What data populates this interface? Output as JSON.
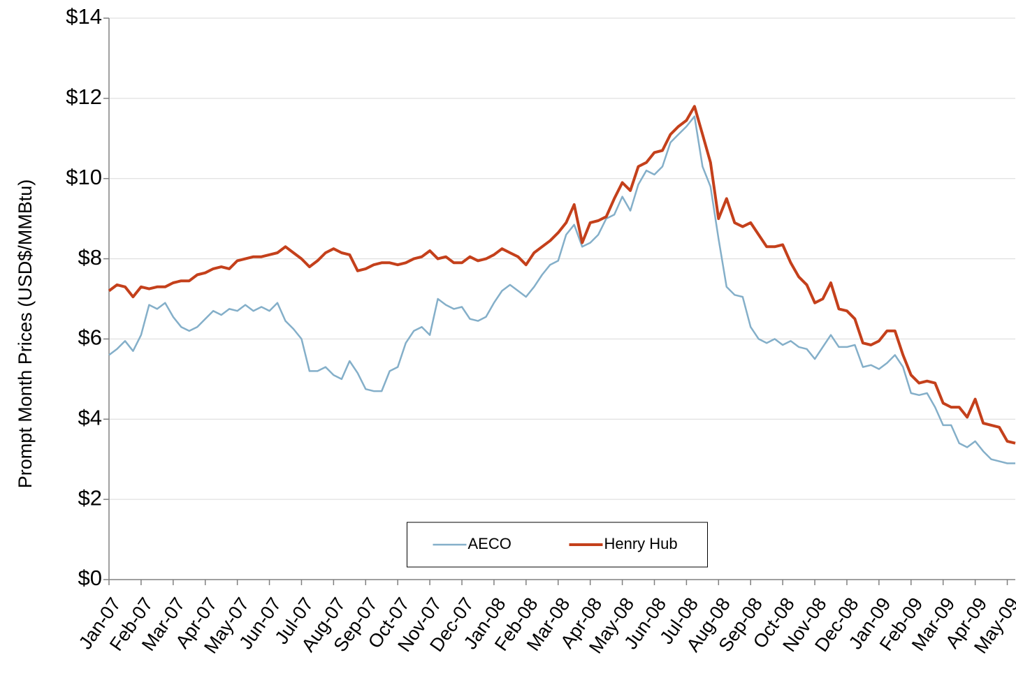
{
  "chart_data": {
    "type": "line",
    "y_label": "Prompt Month Prices (USD$/MMBtu)",
    "categories": [
      "Jan-07",
      null,
      null,
      null,
      "Feb-07",
      null,
      null,
      null,
      "Mar-07",
      null,
      null,
      null,
      "Apr-07",
      null,
      null,
      null,
      "May-07",
      null,
      null,
      null,
      "Jun-07",
      null,
      null,
      null,
      "Jul-07",
      null,
      null,
      null,
      "Aug-07",
      null,
      null,
      null,
      "Sep-07",
      null,
      null,
      null,
      "Oct-07",
      null,
      null,
      null,
      "Nov-07",
      null,
      null,
      null,
      "Dec-07",
      null,
      null,
      null,
      "Jan-08",
      null,
      null,
      null,
      "Feb-08",
      null,
      null,
      null,
      "Mar-08",
      null,
      null,
      null,
      "Apr-08",
      null,
      null,
      null,
      "May-08",
      null,
      null,
      null,
      "Jun-08",
      null,
      null,
      null,
      "Jul-08",
      null,
      null,
      null,
      "Aug-08",
      null,
      null,
      null,
      "Sep-08",
      null,
      null,
      null,
      "Oct-08",
      null,
      null,
      null,
      "Nov-08",
      null,
      null,
      null,
      "Dec-08",
      null,
      null,
      null,
      "Jan-09",
      null,
      null,
      null,
      "Feb-09",
      null,
      null,
      null,
      "Mar-09",
      null,
      null,
      null,
      "Apr-09",
      null,
      null,
      null,
      "May-09",
      null
    ],
    "series": [
      {
        "name": "AECO",
        "color": "#84afc9",
        "width": 2.5,
        "values": [
          5.6,
          5.75,
          5.95,
          5.7,
          6.1,
          6.85,
          6.75,
          6.9,
          6.55,
          6.3,
          6.2,
          6.3,
          6.5,
          6.7,
          6.6,
          6.75,
          6.7,
          6.85,
          6.7,
          6.8,
          6.7,
          6.9,
          6.45,
          6.25,
          6.0,
          5.2,
          5.2,
          5.3,
          5.1,
          5.0,
          5.45,
          5.15,
          4.75,
          4.7,
          4.7,
          5.2,
          5.3,
          5.9,
          6.2,
          6.3,
          6.1,
          7.0,
          6.85,
          6.75,
          6.8,
          6.5,
          6.45,
          6.55,
          6.9,
          7.2,
          7.35,
          7.2,
          7.05,
          7.3,
          7.6,
          7.85,
          7.95,
          8.6,
          8.85,
          8.3,
          8.4,
          8.6,
          9.0,
          9.1,
          9.55,
          9.2,
          9.85,
          10.2,
          10.1,
          10.3,
          10.9,
          11.1,
          11.3,
          11.55,
          10.3,
          9.8,
          8.5,
          7.3,
          7.1,
          7.05,
          6.3,
          6.0,
          5.9,
          6.0,
          5.85,
          5.95,
          5.8,
          5.75,
          5.5,
          5.8,
          6.1,
          5.8,
          5.8,
          5.85,
          5.3,
          5.35,
          5.25,
          5.4,
          5.6,
          5.3,
          4.65,
          4.6,
          4.65,
          4.3,
          3.85,
          3.85,
          3.4,
          3.3,
          3.45,
          3.2,
          3.0,
          2.95,
          2.9,
          2.9
        ]
      },
      {
        "name": "Henry Hub",
        "color": "#c4401b",
        "width": 4,
        "values": [
          7.2,
          7.35,
          7.3,
          7.05,
          7.3,
          7.25,
          7.3,
          7.3,
          7.4,
          7.45,
          7.45,
          7.6,
          7.65,
          7.75,
          7.8,
          7.75,
          7.95,
          8.0,
          8.05,
          8.05,
          8.1,
          8.15,
          8.3,
          8.15,
          8.0,
          7.8,
          7.95,
          8.15,
          8.25,
          8.15,
          8.1,
          7.7,
          7.75,
          7.85,
          7.9,
          7.9,
          7.85,
          7.9,
          8.0,
          8.05,
          8.2,
          8.0,
          8.05,
          7.9,
          7.9,
          8.05,
          7.95,
          8.0,
          8.1,
          8.25,
          8.15,
          8.05,
          7.85,
          8.15,
          8.3,
          8.45,
          8.65,
          8.9,
          9.35,
          8.4,
          8.9,
          8.95,
          9.05,
          9.5,
          9.9,
          9.7,
          10.3,
          10.4,
          10.65,
          10.7,
          11.1,
          11.3,
          11.45,
          11.8,
          11.1,
          10.4,
          9.0,
          9.5,
          8.9,
          8.8,
          8.9,
          8.6,
          8.3,
          8.3,
          8.35,
          7.9,
          7.55,
          7.35,
          6.9,
          7.0,
          7.4,
          6.75,
          6.7,
          6.5,
          5.9,
          5.85,
          5.95,
          6.2,
          6.2,
          5.6,
          5.1,
          4.9,
          4.95,
          4.9,
          4.4,
          4.3,
          4.3,
          4.05,
          4.5,
          3.9,
          3.85,
          3.8,
          3.45,
          3.4
        ]
      }
    ],
    "ylim": [
      0,
      14
    ],
    "yticks": [
      {
        "value": 0,
        "label": "$0"
      },
      {
        "value": 2,
        "label": "$2"
      },
      {
        "value": 4,
        "label": "$4"
      },
      {
        "value": 6,
        "label": "$6"
      },
      {
        "value": 8,
        "label": "$8"
      },
      {
        "value": 10,
        "label": "$10"
      },
      {
        "value": 12,
        "label": "$12"
      },
      {
        "value": 14,
        "label": "$14"
      }
    ],
    "grid": true,
    "legend": "bottom"
  }
}
